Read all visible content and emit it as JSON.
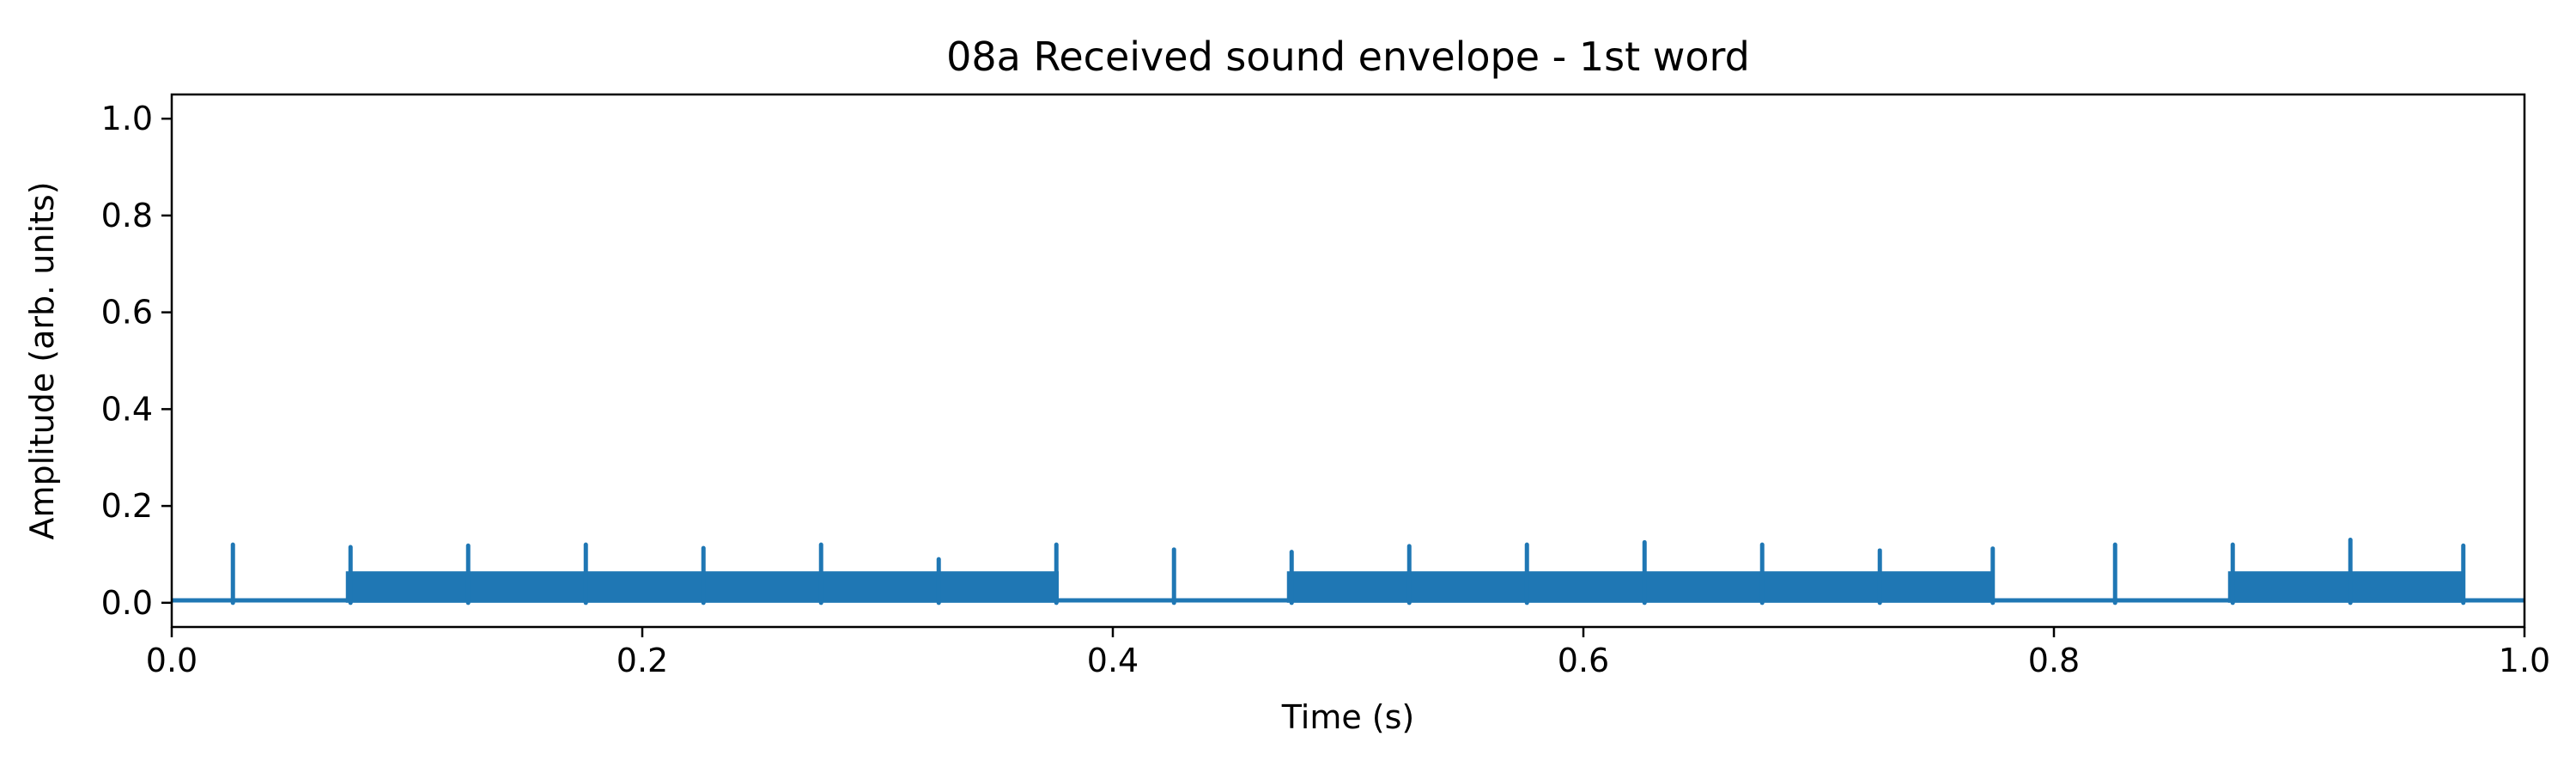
{
  "chart_data": {
    "type": "line",
    "title": "08a Received sound envelope - 1st word",
    "xlabel": "Time (s)",
    "ylabel": "Amplitude (arb. units)",
    "xlim": [
      0.0,
      1.0
    ],
    "ylim": [
      -0.05,
      1.05
    ],
    "x_ticks": [
      0.0,
      0.2,
      0.4,
      0.6,
      0.8,
      1.0
    ],
    "x_tick_labels": [
      "0.0",
      "0.2",
      "0.4",
      "0.6",
      "0.8",
      "1.0"
    ],
    "y_ticks": [
      0.0,
      0.2,
      0.4,
      0.6,
      0.8,
      1.0
    ],
    "y_tick_labels": [
      "0.0",
      "0.2",
      "0.4",
      "0.6",
      "0.8",
      "1.0"
    ],
    "grid": false,
    "line_color": "#1f77b4",
    "baseline_level": 0.005,
    "series": [
      {
        "bursts": [
          {
            "start": 0.074,
            "end": 0.377,
            "level": 0.065
          },
          {
            "start": 0.474,
            "end": 0.774,
            "level": 0.065
          },
          {
            "start": 0.874,
            "end": 0.974,
            "level": 0.065
          }
        ],
        "spikes": [
          {
            "x": 0.026,
            "y": 0.12
          },
          {
            "x": 0.076,
            "y": 0.115
          },
          {
            "x": 0.126,
            "y": 0.118
          },
          {
            "x": 0.176,
            "y": 0.12
          },
          {
            "x": 0.226,
            "y": 0.113
          },
          {
            "x": 0.276,
            "y": 0.12
          },
          {
            "x": 0.326,
            "y": 0.09
          },
          {
            "x": 0.376,
            "y": 0.12
          },
          {
            "x": 0.426,
            "y": 0.11
          },
          {
            "x": 0.476,
            "y": 0.105
          },
          {
            "x": 0.526,
            "y": 0.117
          },
          {
            "x": 0.576,
            "y": 0.12
          },
          {
            "x": 0.626,
            "y": 0.125
          },
          {
            "x": 0.676,
            "y": 0.12
          },
          {
            "x": 0.726,
            "y": 0.108
          },
          {
            "x": 0.774,
            "y": 0.112
          },
          {
            "x": 0.826,
            "y": 0.12
          },
          {
            "x": 0.876,
            "y": 0.12
          },
          {
            "x": 0.926,
            "y": 0.13
          },
          {
            "x": 0.974,
            "y": 0.118
          }
        ]
      }
    ]
  }
}
